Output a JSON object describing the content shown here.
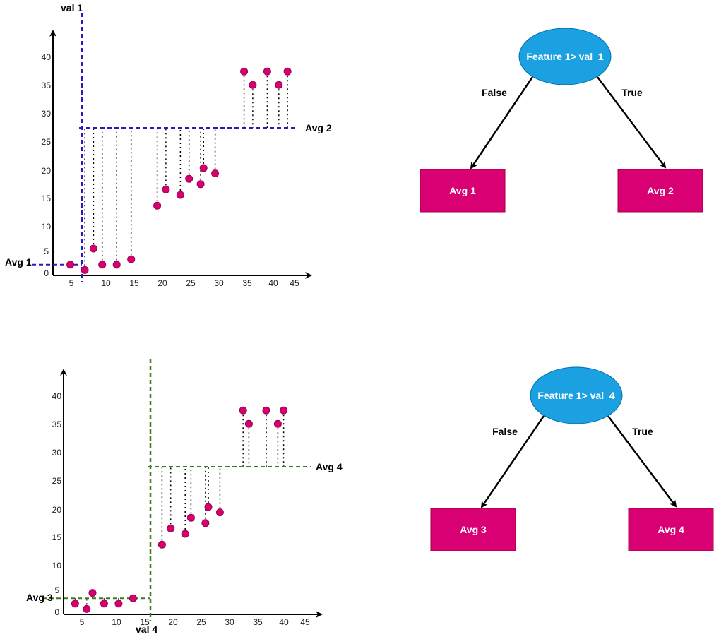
{
  "colors": {
    "point": "#d6006f",
    "point_stroke": "#9a0050",
    "split1": "#2a18c8",
    "split2": "#3d7a18",
    "node_ellipse": "#1ba1e2",
    "leaf": "#d80073",
    "axis": "#000000"
  },
  "chart_data": [
    {
      "type": "scatter",
      "x_ticks": [
        "5",
        "10",
        "15",
        "20",
        "25",
        "30",
        "35",
        "40",
        "45"
      ],
      "y_ticks": [
        "0",
        "5",
        "10",
        "15",
        "20",
        "25",
        "30",
        "35",
        "40"
      ],
      "split_label": "val 1",
      "split_x": 5,
      "left_avg_label": "Avg 1",
      "left_avg": 2,
      "right_avg_label": "Avg 2",
      "right_avg": 27.5,
      "points": [
        {
          "x": 3,
          "y": 2
        },
        {
          "x": 5.5,
          "y": 1
        },
        {
          "x": 7,
          "y": 5
        },
        {
          "x": 8.5,
          "y": 2
        },
        {
          "x": 11,
          "y": 2
        },
        {
          "x": 13.5,
          "y": 3
        },
        {
          "x": 18,
          "y": 13
        },
        {
          "x": 19.5,
          "y": 16
        },
        {
          "x": 22,
          "y": 15
        },
        {
          "x": 23.5,
          "y": 18
        },
        {
          "x": 25.5,
          "y": 17
        },
        {
          "x": 26,
          "y": 20
        },
        {
          "x": 28,
          "y": 19
        },
        {
          "x": 33,
          "y": 38
        },
        {
          "x": 34.5,
          "y": 35.5
        },
        {
          "x": 37,
          "y": 38
        },
        {
          "x": 39,
          "y": 35.5
        },
        {
          "x": 40.5,
          "y": 38
        }
      ]
    },
    {
      "type": "scatter",
      "x_ticks": [
        "5",
        "10",
        "15",
        "20",
        "25",
        "30",
        "35",
        "40",
        "45"
      ],
      "y_ticks": [
        "0",
        "5",
        "10",
        "15",
        "20",
        "25",
        "30",
        "35",
        "40"
      ],
      "split_label": "val 4",
      "split_x": 15,
      "left_avg_label": "Avg 3",
      "left_avg": 3,
      "right_avg_label": "Avg 4",
      "right_avg": 27.5,
      "points": [
        {
          "x": 2,
          "y": 2
        },
        {
          "x": 4,
          "y": 1
        },
        {
          "x": 5,
          "y": 4
        },
        {
          "x": 7,
          "y": 2
        },
        {
          "x": 9.5,
          "y": 2
        },
        {
          "x": 12,
          "y": 3
        },
        {
          "x": 17,
          "y": 13
        },
        {
          "x": 18.5,
          "y": 16
        },
        {
          "x": 21,
          "y": 15
        },
        {
          "x": 22,
          "y": 18
        },
        {
          "x": 24.5,
          "y": 17
        },
        {
          "x": 25,
          "y": 20
        },
        {
          "x": 27,
          "y": 19
        },
        {
          "x": 31,
          "y": 38
        },
        {
          "x": 32,
          "y": 35.5
        },
        {
          "x": 35,
          "y": 38
        },
        {
          "x": 37,
          "y": 35.5
        },
        {
          "x": 38,
          "y": 38
        }
      ]
    }
  ],
  "trees": [
    {
      "root": "Feature 1> val_1",
      "left_edge": "False",
      "right_edge": "True",
      "left_leaf": "Avg 1",
      "right_leaf": "Avg 2"
    },
    {
      "root": "Feature 1> val_4",
      "left_edge": "False",
      "right_edge": "True",
      "left_leaf": "Avg 3",
      "right_leaf": "Avg 4"
    }
  ]
}
